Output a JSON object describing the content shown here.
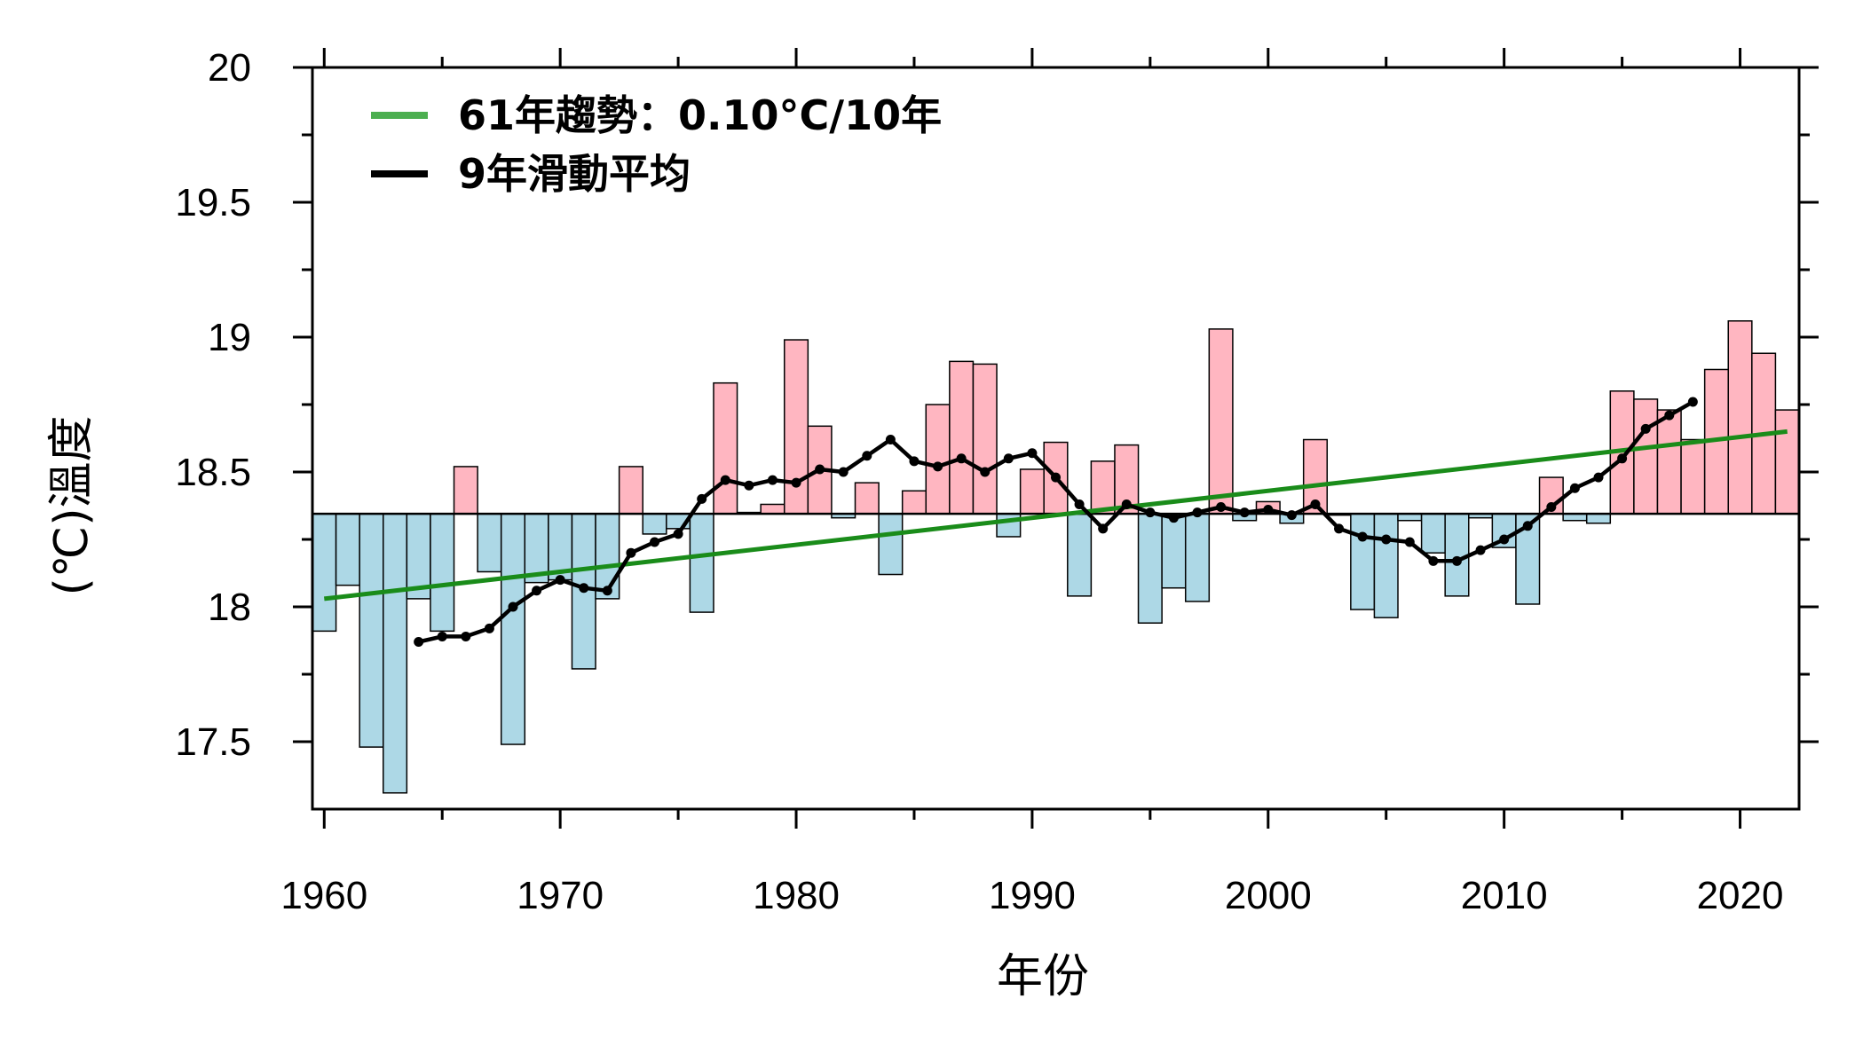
{
  "chart_data": {
    "type": "bar",
    "xlabel": "年份",
    "ylabel": "(℃)溫度",
    "xlim": [
      1959.5,
      2022.5
    ],
    "ylim": [
      17.25,
      20.0
    ],
    "baseline": 18.345,
    "x_ticks": [
      1960,
      1970,
      1980,
      1990,
      2000,
      2010,
      2020
    ],
    "y_ticks": [
      17.5,
      18,
      18.5,
      19,
      19.5,
      20
    ],
    "y_tick_labels": [
      "17.5",
      "18",
      "18.5",
      "19",
      "19.5",
      "20"
    ],
    "colors": {
      "above": "#ffb6c1",
      "below": "#add8e6",
      "trend": "#1a8c1a",
      "moving_average": "#000000"
    },
    "legend": {
      "placement": "top-left",
      "entries": [
        {
          "label": "61年趨勢：0.10°C/10年",
          "color": "#4caf50",
          "series": "trend"
        },
        {
          "label": "9年滑動平均",
          "color": "#000000",
          "series": "moving_average"
        }
      ]
    },
    "years": [
      1960,
      1961,
      1962,
      1963,
      1964,
      1965,
      1966,
      1967,
      1968,
      1969,
      1970,
      1971,
      1972,
      1973,
      1974,
      1975,
      1976,
      1977,
      1978,
      1979,
      1980,
      1981,
      1982,
      1983,
      1984,
      1985,
      1986,
      1987,
      1988,
      1989,
      1990,
      1991,
      1992,
      1993,
      1994,
      1995,
      1996,
      1997,
      1998,
      1999,
      2000,
      2001,
      2002,
      2003,
      2004,
      2005,
      2006,
      2007,
      2008,
      2009,
      2010,
      2011,
      2012,
      2013,
      2014,
      2015,
      2016,
      2017,
      2018,
      2019,
      2020,
      2021,
      2022
    ],
    "values": [
      17.91,
      18.08,
      17.48,
      17.31,
      18.03,
      17.91,
      18.52,
      18.13,
      17.49,
      18.09,
      18.1,
      17.77,
      18.03,
      18.52,
      18.27,
      18.29,
      17.98,
      18.83,
      18.35,
      18.38,
      18.99,
      18.67,
      18.33,
      18.46,
      18.12,
      18.43,
      18.75,
      18.91,
      18.9,
      18.26,
      18.51,
      18.61,
      18.04,
      18.54,
      18.6,
      17.94,
      18.07,
      18.02,
      19.03,
      18.32,
      18.39,
      18.31,
      18.62,
      18.34,
      17.99,
      17.96,
      18.32,
      18.2,
      18.04,
      18.33,
      18.22,
      18.01,
      18.48,
      18.32,
      18.31,
      18.8,
      18.77,
      18.73,
      18.62,
      18.88,
      19.06,
      18.94,
      18.73
    ],
    "moving_average": {
      "years": [
        1964,
        1965,
        1966,
        1967,
        1968,
        1969,
        1970,
        1971,
        1972,
        1973,
        1974,
        1975,
        1976,
        1977,
        1978,
        1979,
        1980,
        1981,
        1982,
        1983,
        1984,
        1985,
        1986,
        1987,
        1988,
        1989,
        1990,
        1991,
        1992,
        1993,
        1994,
        1995,
        1996,
        1997,
        1998,
        1999,
        2000,
        2001,
        2002,
        2003,
        2004,
        2005,
        2006,
        2007,
        2008,
        2009,
        2010,
        2011,
        2012,
        2013,
        2014,
        2015,
        2016,
        2017,
        2018
      ],
      "values": [
        17.87,
        17.89,
        17.89,
        17.92,
        18.0,
        18.06,
        18.1,
        18.07,
        18.06,
        18.2,
        18.24,
        18.27,
        18.4,
        18.47,
        18.45,
        18.47,
        18.46,
        18.51,
        18.5,
        18.56,
        18.62,
        18.54,
        18.52,
        18.55,
        18.5,
        18.55,
        18.57,
        18.48,
        18.38,
        18.29,
        18.38,
        18.35,
        18.33,
        18.35,
        18.37,
        18.35,
        18.36,
        18.34,
        18.38,
        18.29,
        18.26,
        18.25,
        18.24,
        18.17,
        18.17,
        18.21,
        18.25,
        18.3,
        18.37,
        18.44,
        18.48,
        18.55,
        18.66,
        18.71,
        18.76
      ]
    },
    "trend": {
      "years": [
        1960,
        2022
      ],
      "values": [
        18.03,
        18.65
      ]
    }
  }
}
